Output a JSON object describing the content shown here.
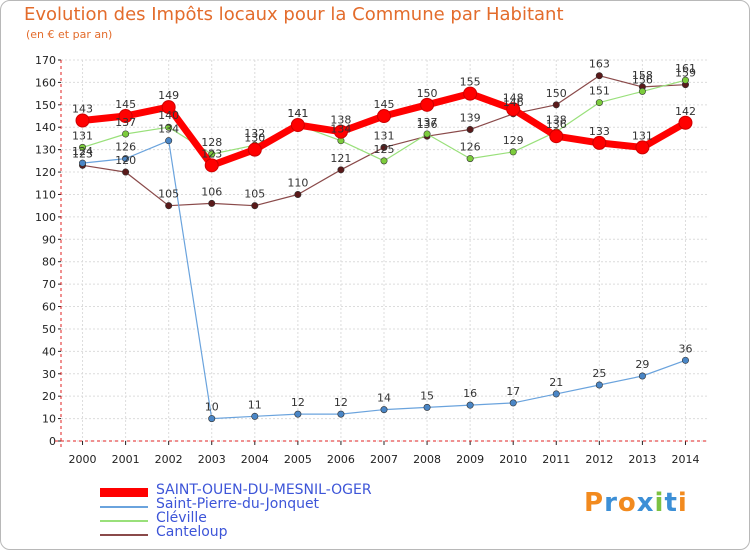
{
  "title": "Evolution des Impôts locaux pour la Commune par Habitant",
  "subtitle": "(en € et par an)",
  "brand": "Proxiti",
  "chart_data": {
    "type": "line",
    "title": "Evolution des Impôts locaux pour la Commune par Habitant",
    "ylabel": "(en € et par an)",
    "xlabel": "",
    "ylim": [
      0,
      170
    ],
    "y_ticks": [
      0,
      10,
      20,
      30,
      40,
      50,
      60,
      70,
      80,
      90,
      100,
      110,
      120,
      130,
      140,
      150,
      160,
      170
    ],
    "categories": [
      "2000",
      "2001",
      "2002",
      "2003",
      "2004",
      "2005",
      "2006",
      "2007",
      "2008",
      "2009",
      "2010",
      "2011",
      "2012",
      "2013",
      "2014"
    ],
    "grid": true,
    "legend_position": "bottom-left",
    "series": [
      {
        "name": "SAINT-OUEN-DU-MESNIL-OGER",
        "color": "#ff0000",
        "marker": "#ff0000",
        "emphasis": true,
        "values": [
          143,
          145,
          149,
          123,
          130,
          141,
          138,
          145,
          150,
          155,
          148,
          136,
          133,
          131,
          142
        ]
      },
      {
        "name": "Saint-Pierre-du-Jonquet",
        "color": "#6aa3dd",
        "marker": "#4a86c6",
        "emphasis": false,
        "values": [
          124,
          126,
          134,
          10,
          11,
          12,
          12,
          14,
          15,
          16,
          17,
          21,
          25,
          29,
          36
        ]
      },
      {
        "name": "Cléville",
        "color": "#99e07a",
        "marker": "#7ccc3c",
        "emphasis": false,
        "values": [
          131,
          137,
          140,
          128,
          132,
          141,
          134,
          125,
          137,
          126,
          129,
          138,
          151,
          156,
          161
        ]
      },
      {
        "name": "Canteloup",
        "color": "#8a4a4a",
        "marker": "#5a1a1a",
        "emphasis": false,
        "values": [
          123,
          120,
          105,
          106,
          105,
          110,
          121,
          131,
          136,
          139,
          146,
          150,
          163,
          158,
          159
        ]
      }
    ]
  }
}
